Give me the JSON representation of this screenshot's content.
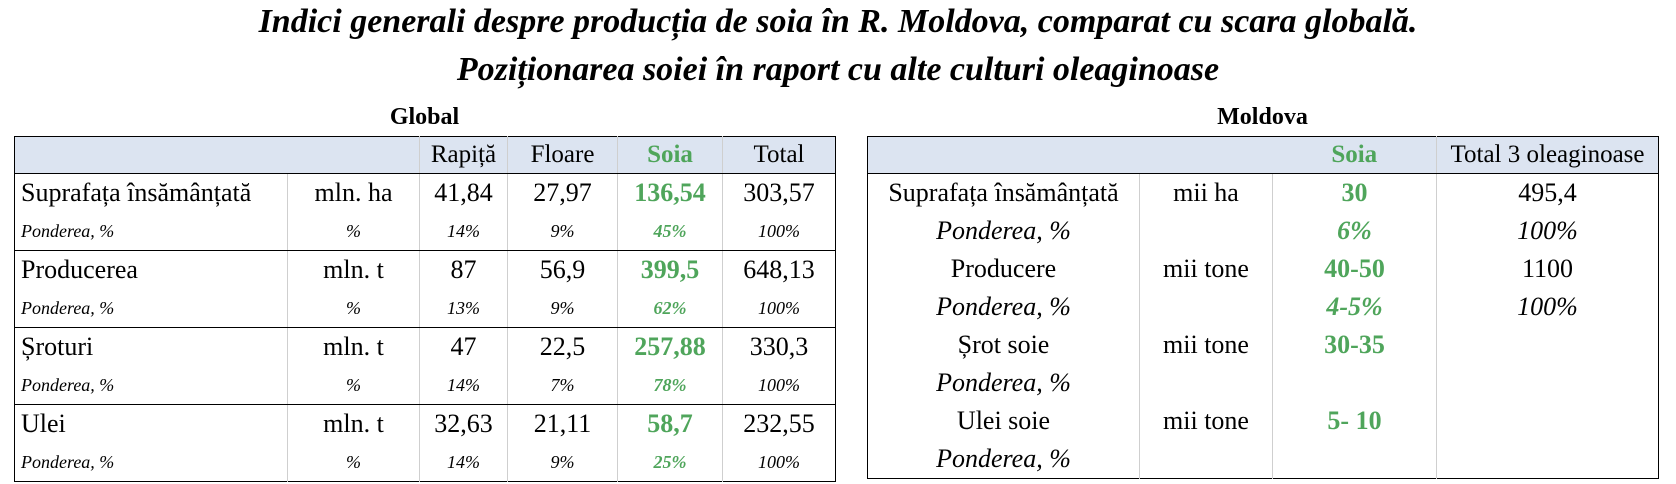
{
  "title_line1": "Indici generali despre producția de soia în R. Moldova, comparat cu scara globală.",
  "title_line2": "Poziționarea soiei în raport cu alte culturi oleaginoase",
  "global": {
    "label": "Global",
    "headers": [
      "",
      "",
      "Rapiță",
      "Floare",
      "Soia",
      "Total"
    ],
    "rows": [
      [
        "Suprafața însămânțată",
        "mln. ha",
        "41,84",
        "27,97",
        "136,54",
        "303,57"
      ],
      [
        "Ponderea, %",
        "%",
        "14%",
        "9%",
        "45%",
        "100%"
      ],
      [
        "Producerea",
        "mln. t",
        "87",
        "56,9",
        "399,5",
        "648,13"
      ],
      [
        "Ponderea, %",
        "%",
        "13%",
        "9%",
        "62%",
        "100%"
      ],
      [
        "Șroturi",
        "mln. t",
        "47",
        "22,5",
        "257,88",
        "330,3"
      ],
      [
        "Ponderea, %",
        "%",
        "14%",
        "7%",
        "78%",
        "100%"
      ],
      [
        "Ulei",
        "mln. t",
        "32,63",
        "21,11",
        "58,7",
        "232,55"
      ],
      [
        "Ponderea, %",
        "%",
        "14%",
        "9%",
        "25%",
        "100%"
      ]
    ]
  },
  "moldova": {
    "label": "Moldova",
    "headers": [
      "",
      "",
      "Soia",
      "Total 3 oleaginoase"
    ],
    "rows": [
      [
        "Suprafața însămânțată",
        "mii ha",
        "30",
        "495,4"
      ],
      [
        "Ponderea, %",
        "",
        "6%",
        "100%"
      ],
      [
        "Producere",
        "mii tone",
        "40-50",
        "1100"
      ],
      [
        "Ponderea, %",
        "",
        "4-5%",
        "100%"
      ],
      [
        "Șrot soie",
        "mii tone",
        "30-35",
        ""
      ],
      [
        "Ponderea, %",
        "",
        "",
        ""
      ],
      [
        "Ulei soie",
        "mii tone",
        "5- 10",
        ""
      ],
      [
        "Ponderea, %",
        "",
        "",
        ""
      ]
    ]
  },
  "colors": {
    "soia_green": "#4fa55b",
    "header_fill": "#dce4f1"
  }
}
